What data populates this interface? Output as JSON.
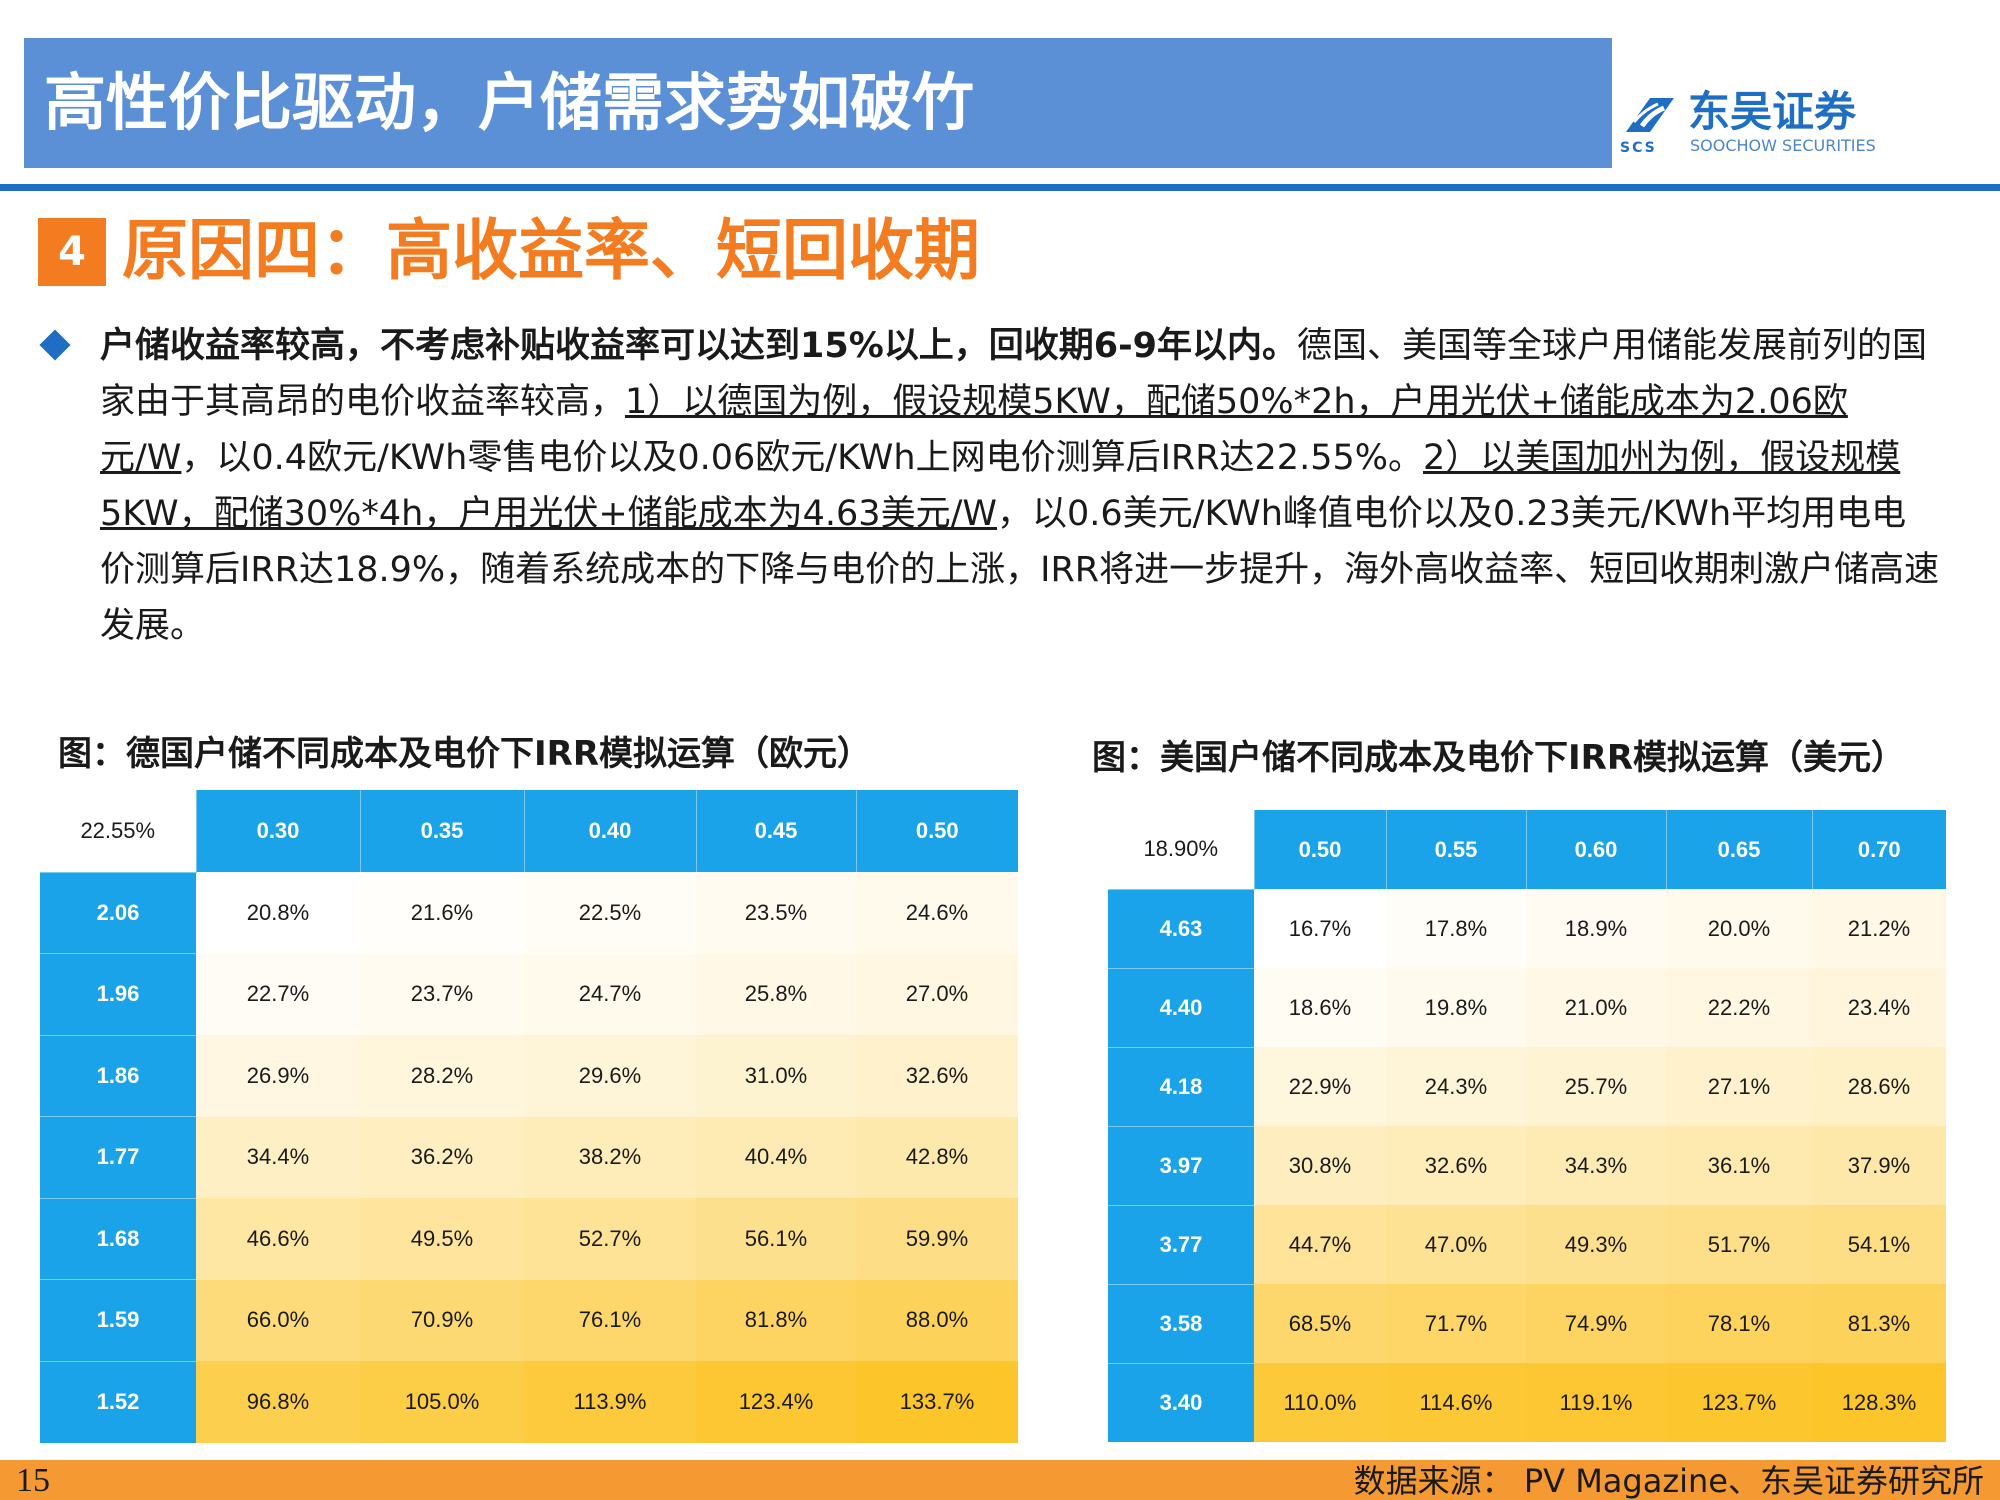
{
  "header": {
    "title": "高性价比驱动，户储需求势如破竹",
    "logo_cn": "东吴证券",
    "logo_en": "SOOCHOW SECURITIES",
    "logo_abbr": "SCS",
    "band_color": "#5b8fd6",
    "accent_color": "#1f6ec4"
  },
  "section": {
    "number": "4",
    "title": "原因四：高收益率、短回收期",
    "color": "#f47c20"
  },
  "paragraph": {
    "bold_lead": "户储收益率较高，不考虑补贴收益率可以达到15%以上，回收期6-9年以内。",
    "text1": "德国、美国等全球户用储能发展前列的国家由于其高昂的电价收益率较高，",
    "underline1": "1）以德国为例，假设规模5KW，配储50%*2h，户用光伏+储能成本为2.06欧元/W",
    "text2": "，以0.4欧元/KWh零售电价以及0.06欧元/KWh上网电价测算后IRR达22.55%。",
    "underline2": "2）以美国加州为例，假设规模5KW，配储30%*4h，户用光伏+储能成本为4.63美元/W",
    "text3": "，以0.6美元/KWh峰值电价以及0.23美元/KWh平均用电电价测算后IRR达18.9%，随着系统成本的下降与电价的上涨，IRR将进一步提升，海外高收益率、短回收期刺激户储高速发展。"
  },
  "table_de": {
    "title": "图：德国户储不同成本及电价下IRR模拟运算（欧元）",
    "corner": "22.55%",
    "columns": [
      "0.30",
      "0.35",
      "0.40",
      "0.45",
      "0.50"
    ],
    "rows": [
      {
        "label": "2.06",
        "values": [
          "20.8%",
          "21.6%",
          "22.5%",
          "23.5%",
          "24.6%"
        ],
        "num": [
          20.8,
          21.6,
          22.5,
          23.5,
          24.6
        ]
      },
      {
        "label": "1.96",
        "values": [
          "22.7%",
          "23.7%",
          "24.7%",
          "25.8%",
          "27.0%"
        ],
        "num": [
          22.7,
          23.7,
          24.7,
          25.8,
          27.0
        ]
      },
      {
        "label": "1.86",
        "values": [
          "26.9%",
          "28.2%",
          "29.6%",
          "31.0%",
          "32.6%"
        ],
        "num": [
          26.9,
          28.2,
          29.6,
          31.0,
          32.6
        ]
      },
      {
        "label": "1.77",
        "values": [
          "34.4%",
          "36.2%",
          "38.2%",
          "40.4%",
          "42.8%"
        ],
        "num": [
          34.4,
          36.2,
          38.2,
          40.4,
          42.8
        ]
      },
      {
        "label": "1.68",
        "values": [
          "46.6%",
          "49.5%",
          "52.7%",
          "56.1%",
          "59.9%"
        ],
        "num": [
          46.6,
          49.5,
          52.7,
          56.1,
          59.9
        ]
      },
      {
        "label": "1.59",
        "values": [
          "66.0%",
          "70.9%",
          "76.1%",
          "81.8%",
          "88.0%"
        ],
        "num": [
          66.0,
          70.9,
          76.1,
          81.8,
          88.0
        ]
      },
      {
        "label": "1.52",
        "values": [
          "96.8%",
          "105.0%",
          "113.9%",
          "123.4%",
          "133.7%"
        ],
        "num": [
          96.8,
          105.0,
          113.9,
          123.4,
          133.7
        ]
      }
    ]
  },
  "table_us": {
    "title": "图：美国户储不同成本及电价下IRR模拟运算（美元）",
    "corner": "18.90%",
    "columns": [
      "0.50",
      "0.55",
      "0.60",
      "0.65",
      "0.70"
    ],
    "rows": [
      {
        "label": "4.63",
        "values": [
          "16.7%",
          "17.8%",
          "18.9%",
          "20.0%",
          "21.2%"
        ],
        "num": [
          16.7,
          17.8,
          18.9,
          20.0,
          21.2
        ]
      },
      {
        "label": "4.40",
        "values": [
          "18.6%",
          "19.8%",
          "21.0%",
          "22.2%",
          "23.4%"
        ],
        "num": [
          18.6,
          19.8,
          21.0,
          22.2,
          23.4
        ]
      },
      {
        "label": "4.18",
        "values": [
          "22.9%",
          "24.3%",
          "25.7%",
          "27.1%",
          "28.6%"
        ],
        "num": [
          22.9,
          24.3,
          25.7,
          27.1,
          28.6
        ]
      },
      {
        "label": "3.97",
        "values": [
          "30.8%",
          "32.6%",
          "34.3%",
          "36.1%",
          "37.9%"
        ],
        "num": [
          30.8,
          32.6,
          34.3,
          36.1,
          37.9
        ]
      },
      {
        "label": "3.77",
        "values": [
          "44.7%",
          "47.0%",
          "49.3%",
          "51.7%",
          "54.1%"
        ],
        "num": [
          44.7,
          47.0,
          49.3,
          51.7,
          54.1
        ]
      },
      {
        "label": "3.58",
        "values": [
          "68.5%",
          "71.7%",
          "74.9%",
          "78.1%",
          "81.3%"
        ],
        "num": [
          68.5,
          71.7,
          74.9,
          78.1,
          81.3
        ]
      },
      {
        "label": "3.40",
        "values": [
          "110.0%",
          "114.6%",
          "119.1%",
          "123.7%",
          "128.3%"
        ],
        "num": [
          110.0,
          114.6,
          119.1,
          123.7,
          128.3
        ]
      }
    ]
  },
  "heatmap_colors": {
    "low": "#ffffff",
    "high": "#fcc52a"
  },
  "footer": {
    "page": "15",
    "source": "数据来源： PV Magazine、东吴证券研究所",
    "band_color": "#f59a33"
  }
}
